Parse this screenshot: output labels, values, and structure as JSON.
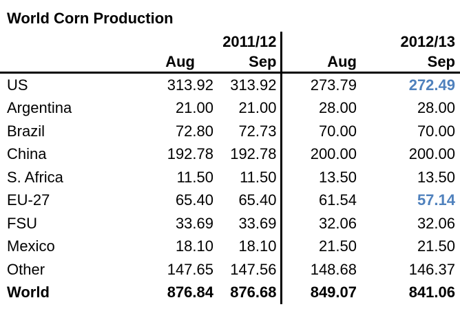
{
  "title": "World Corn Production",
  "table": {
    "year_groups": [
      "2011/12",
      "2012/13"
    ],
    "month_headers": [
      "Aug",
      "Sep",
      "Aug",
      "Sep"
    ],
    "rows": [
      {
        "label": "US",
        "values": [
          "313.92",
          "313.92",
          "273.79",
          "272.49"
        ],
        "highlight": [
          3
        ],
        "bold": false
      },
      {
        "label": "Argentina",
        "values": [
          "21.00",
          "21.00",
          "28.00",
          "28.00"
        ],
        "highlight": [],
        "bold": false
      },
      {
        "label": "Brazil",
        "values": [
          "72.80",
          "72.73",
          "70.00",
          "70.00"
        ],
        "highlight": [],
        "bold": false
      },
      {
        "label": "China",
        "values": [
          "192.78",
          "192.78",
          "200.00",
          "200.00"
        ],
        "highlight": [],
        "bold": false
      },
      {
        "label": "S. Africa",
        "values": [
          "11.50",
          "11.50",
          "13.50",
          "13.50"
        ],
        "highlight": [],
        "bold": false
      },
      {
        "label": "EU-27",
        "values": [
          "65.40",
          "65.40",
          "61.54",
          "57.14"
        ],
        "highlight": [
          3
        ],
        "bold": false
      },
      {
        "label": "FSU",
        "values": [
          "33.69",
          "33.69",
          "32.06",
          "32.06"
        ],
        "highlight": [],
        "bold": false
      },
      {
        "label": "Mexico",
        "values": [
          "18.10",
          "18.10",
          "21.50",
          "21.50"
        ],
        "highlight": [],
        "bold": false
      },
      {
        "label": "Other",
        "values": [
          "147.65",
          "147.56",
          "148.68",
          "146.37"
        ],
        "highlight": [],
        "bold": false
      },
      {
        "label": "World",
        "values": [
          "876.84",
          "876.68",
          "849.07",
          "841.06"
        ],
        "highlight": [],
        "bold": true
      }
    ],
    "colors": {
      "highlight_blue": "#4F81BD",
      "text": "#000000",
      "rule": "#000000",
      "background": "#ffffff"
    }
  }
}
